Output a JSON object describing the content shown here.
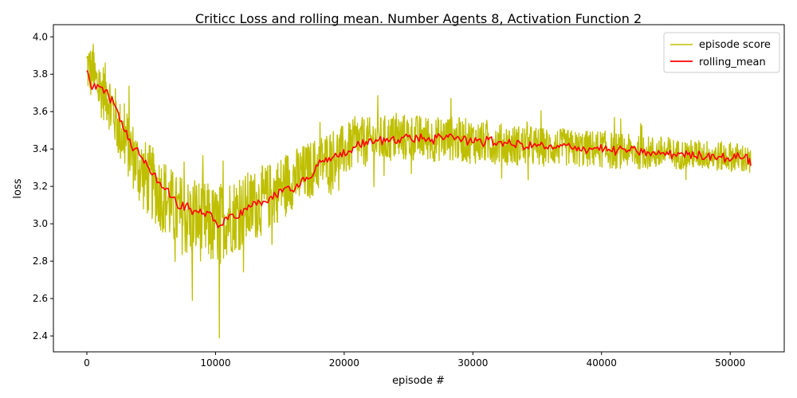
{
  "chart_data": {
    "type": "line",
    "title": "Criticc Loss and rolling mean. Number Agents 8, Activation Function 2",
    "xlabel": "episode #",
    "ylabel": "loss",
    "xlim": [
      -2600,
      54200
    ],
    "ylim": [
      2.315,
      4.065
    ],
    "xticks": [
      0,
      10000,
      20000,
      30000,
      40000,
      50000
    ],
    "xtick_labels": [
      "0",
      "10000",
      "20000",
      "30000",
      "40000",
      "50000"
    ],
    "yticks": [
      2.4,
      2.6,
      2.8,
      3.0,
      3.2,
      3.4,
      3.6,
      3.8,
      4.0
    ],
    "ytick_labels": [
      "2.4",
      "2.6",
      "2.8",
      "3.0",
      "3.2",
      "3.4",
      "3.6",
      "3.8",
      "4.0"
    ],
    "grid": false,
    "legend_position": "top-right",
    "series": [
      {
        "name": "episode score",
        "color": "#bfbf00",
        "x": [
          0,
          500,
          1000,
          1500,
          2000,
          2500,
          3000,
          3500,
          4000,
          4500,
          5000,
          5500,
          6000,
          6500,
          7000,
          7500,
          8000,
          8500,
          9000,
          9500,
          10000,
          10500,
          11000,
          11500,
          12000,
          12500,
          13000,
          13500,
          14000,
          14500,
          15000,
          15500,
          16000,
          17000,
          18000,
          19000,
          20000,
          21000,
          22000,
          23000,
          24000,
          25000,
          26000,
          27000,
          28000,
          29000,
          30000,
          31000,
          32000,
          33000,
          34000,
          35000,
          36000,
          37000,
          38000,
          39000,
          40000,
          41000,
          42000,
          43000,
          44000,
          45000,
          46000,
          47000,
          48000,
          49000,
          50000,
          51000,
          51600
        ],
        "y": [
          3.85,
          3.78,
          3.72,
          3.7,
          3.62,
          3.5,
          3.45,
          3.38,
          3.3,
          3.25,
          3.22,
          3.18,
          3.15,
          3.1,
          3.05,
          3.05,
          3.02,
          3.03,
          3.01,
          3.0,
          2.98,
          3.02,
          3.04,
          3.05,
          3.06,
          3.08,
          3.1,
          3.12,
          3.14,
          3.16,
          3.19,
          3.22,
          3.24,
          3.27,
          3.32,
          3.36,
          3.39,
          3.43,
          3.44,
          3.45,
          3.46,
          3.46,
          3.46,
          3.45,
          3.46,
          3.45,
          3.44,
          3.43,
          3.43,
          3.42,
          3.42,
          3.41,
          3.41,
          3.41,
          3.4,
          3.4,
          3.4,
          3.39,
          3.39,
          3.38,
          3.38,
          3.38,
          3.37,
          3.37,
          3.37,
          3.36,
          3.36,
          3.35,
          3.32
        ],
        "band": [
          0.15,
          0.15,
          0.15,
          0.16,
          0.16,
          0.17,
          0.18,
          0.18,
          0.19,
          0.2,
          0.2,
          0.2,
          0.21,
          0.21,
          0.21,
          0.22,
          0.22,
          0.22,
          0.22,
          0.22,
          0.22,
          0.21,
          0.21,
          0.2,
          0.2,
          0.2,
          0.19,
          0.19,
          0.18,
          0.18,
          0.17,
          0.17,
          0.16,
          0.16,
          0.15,
          0.15,
          0.14,
          0.14,
          0.13,
          0.13,
          0.13,
          0.13,
          0.12,
          0.12,
          0.12,
          0.12,
          0.12,
          0.11,
          0.11,
          0.11,
          0.11,
          0.11,
          0.1,
          0.1,
          0.1,
          0.1,
          0.1,
          0.1,
          0.09,
          0.09,
          0.09,
          0.09,
          0.08,
          0.08,
          0.08,
          0.08,
          0.08,
          0.08,
          0.08
        ],
        "notable_points": [
          {
            "x": 10300,
            "y": 2.39
          },
          {
            "x": 8200,
            "y": 2.59
          },
          {
            "x": 28300,
            "y": 3.67
          },
          {
            "x": 500,
            "y": 3.96
          }
        ]
      },
      {
        "name": "rolling_mean",
        "color": "#ff0000",
        "x": [
          0,
          300,
          700,
          1200,
          1700,
          2200,
          2700,
          3200,
          3700,
          4200,
          4700,
          5200,
          5700,
          6200,
          6700,
          7200,
          7700,
          8200,
          8700,
          9200,
          9700,
          10200,
          10700,
          11200,
          11700,
          12200,
          12700,
          13200,
          13700,
          14200,
          14700,
          15200,
          15700,
          16200,
          16700,
          17200,
          17700,
          18200,
          18700,
          19200,
          19700,
          20200,
          20700,
          21200,
          21700,
          22200,
          22700,
          23200,
          23700,
          24200,
          24700,
          25200,
          25700,
          26200,
          26700,
          27200,
          27700,
          28200,
          28700,
          29200,
          29700,
          30200,
          30700,
          31200,
          31700,
          32200,
          32700,
          33200,
          33700,
          34200,
          34700,
          35200,
          35700,
          36200,
          36700,
          37200,
          37700,
          38200,
          38700,
          39200,
          39700,
          40200,
          40700,
          41200,
          41700,
          42200,
          42700,
          43200,
          43700,
          44200,
          44700,
          45200,
          45700,
          46200,
          46700,
          47200,
          47700,
          48200,
          48700,
          49200,
          49700,
          50200,
          50700,
          51200,
          51600
        ],
        "y": [
          3.82,
          3.74,
          3.72,
          3.73,
          3.68,
          3.63,
          3.55,
          3.45,
          3.4,
          3.36,
          3.31,
          3.27,
          3.22,
          3.19,
          3.14,
          3.08,
          3.1,
          3.05,
          3.06,
          3.04,
          3.05,
          2.98,
          3.03,
          3.05,
          3.03,
          3.08,
          3.09,
          3.1,
          3.12,
          3.14,
          3.15,
          3.17,
          3.2,
          3.19,
          3.24,
          3.24,
          3.28,
          3.33,
          3.33,
          3.36,
          3.38,
          3.37,
          3.41,
          3.42,
          3.44,
          3.43,
          3.45,
          3.44,
          3.46,
          3.45,
          3.47,
          3.45,
          3.46,
          3.46,
          3.44,
          3.46,
          3.45,
          3.48,
          3.46,
          3.45,
          3.44,
          3.46,
          3.43,
          3.45,
          3.43,
          3.44,
          3.43,
          3.42,
          3.43,
          3.41,
          3.42,
          3.42,
          3.41,
          3.4,
          3.41,
          3.42,
          3.4,
          3.41,
          3.4,
          3.4,
          3.41,
          3.4,
          3.39,
          3.39,
          3.4,
          3.39,
          3.39,
          3.38,
          3.38,
          3.37,
          3.38,
          3.37,
          3.37,
          3.38,
          3.37,
          3.36,
          3.37,
          3.36,
          3.37,
          3.36,
          3.35,
          3.35,
          3.36,
          3.37,
          3.31
        ]
      }
    ]
  }
}
